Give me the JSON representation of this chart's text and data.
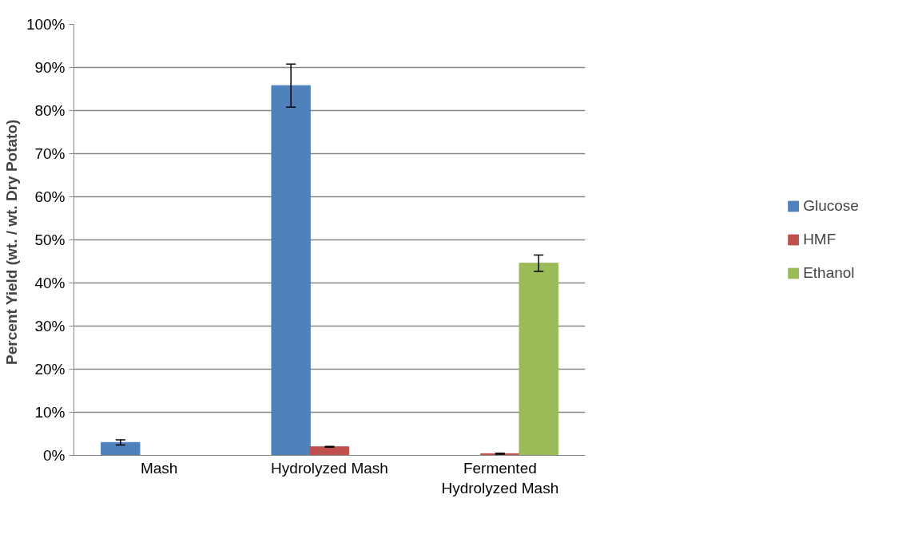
{
  "chart_data": {
    "type": "bar",
    "ylabel": "Percent Yield (wt. / wt.  Dry Potato)",
    "categories": [
      "Mash",
      "Hydrolyzed Mash",
      "Fermented Hydrolyzed Mash"
    ],
    "series": [
      {
        "name": "Glucose",
        "color": "#4f81bd",
        "values": [
          3.0,
          85.8,
          0
        ],
        "errors": [
          0.6,
          5.0,
          null
        ]
      },
      {
        "name": "HMF",
        "color": "#c0504d",
        "values": [
          0,
          2.0,
          0.4
        ],
        "errors": [
          null,
          0.1,
          0.1
        ]
      },
      {
        "name": "Ethanol",
        "color": "#9bbb59",
        "values": [
          0,
          0,
          44.6
        ],
        "errors": [
          null,
          null,
          1.9
        ]
      }
    ],
    "ylim": [
      0,
      100
    ],
    "yticks": [
      {
        "value": 0,
        "label": "0%"
      },
      {
        "value": 10,
        "label": "10%"
      },
      {
        "value": 20,
        "label": "20%"
      },
      {
        "value": 30,
        "label": "30%"
      },
      {
        "value": 40,
        "label": "40%"
      },
      {
        "value": 50,
        "label": "50%"
      },
      {
        "value": 60,
        "label": "60%"
      },
      {
        "value": 70,
        "label": "70%"
      },
      {
        "value": 80,
        "label": "80%"
      },
      {
        "value": 90,
        "label": "90%"
      },
      {
        "value": 100,
        "label": "100%"
      }
    ],
    "grid": "y",
    "legend": "right"
  }
}
